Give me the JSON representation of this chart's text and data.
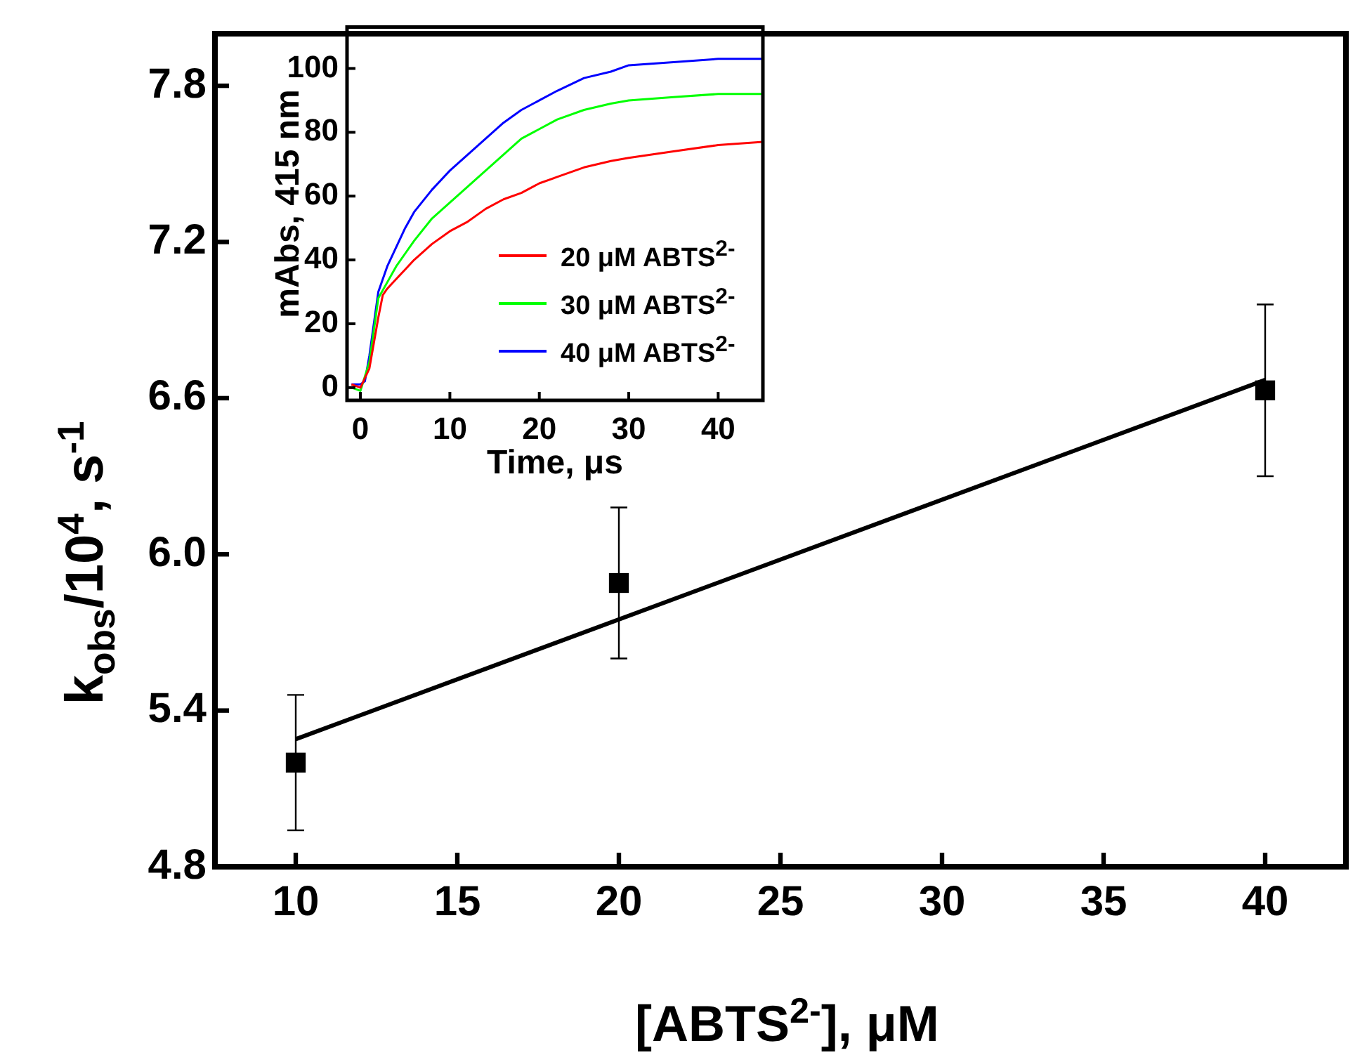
{
  "chart_data": [
    {
      "type": "scatter",
      "xlabel": "[ABTS$^{2-}$], μM",
      "ylabel": "k$_{obs}$/10$^{4}$, s$^{-1}$",
      "xlim": [
        7.5,
        42.5
      ],
      "xticks": [
        10,
        15,
        20,
        25,
        30,
        35,
        40
      ],
      "ylim": [
        4.8,
        8.0
      ],
      "yticks": [
        4.8,
        5.4,
        {
          "value": 6,
          "label": "6.0"
        },
        6.6,
        7.2,
        7.8
      ],
      "legend": false,
      "grid": false,
      "series": [
        {
          "type": "scatter",
          "marker": "square",
          "color": "#000000",
          "x": [
            10,
            20,
            40
          ],
          "values": [
            5.2,
            5.89,
            6.63
          ],
          "errors": [
            0.26,
            0.29,
            0.33
          ]
        },
        {
          "type": "line",
          "marker": "none",
          "color": "#000000",
          "x": [
            10,
            40
          ],
          "values": [
            5.29,
            6.67
          ]
        }
      ]
    },
    {
      "type": "line",
      "xlabel": "Time, μs",
      "ylabel": "mAbs, 415 nm",
      "xlim": [
        -1.5,
        45
      ],
      "xticks": [
        0,
        10,
        20,
        30,
        40
      ],
      "ylim": [
        -4,
        113
      ],
      "yticks": [
        0,
        20,
        40,
        60,
        80,
        100
      ],
      "legend": "bottom right",
      "grid": false,
      "marker": "none",
      "series": [
        {
          "name": "20 μM ABTS$^{2-}$",
          "color": "#ff0000",
          "x": [
            -1,
            0,
            1,
            2,
            2.5,
            3,
            4,
            5,
            6,
            8,
            10,
            12,
            14,
            16,
            18,
            20,
            22,
            25,
            28,
            30,
            35,
            40,
            45
          ],
          "values": [
            1,
            0,
            6,
            22,
            29,
            31,
            34,
            37,
            40,
            45,
            49,
            52,
            56,
            59,
            61,
            64,
            66,
            69,
            71,
            72,
            74,
            76,
            77
          ]
        },
        {
          "name": "30 μM ABTS$^{2-}$",
          "color": "#00ff00",
          "x": [
            -1,
            0,
            1,
            2,
            3,
            4,
            5,
            6,
            8,
            10,
            12,
            14,
            16,
            18,
            20,
            22,
            25,
            28,
            30,
            35,
            40,
            45
          ],
          "values": [
            0,
            -1,
            8,
            28,
            33,
            38,
            42,
            46,
            53,
            58,
            63,
            68,
            73,
            78,
            81,
            84,
            87,
            89,
            90,
            91,
            92,
            92
          ]
        },
        {
          "name": "40 μM ABTS$^{2-}$",
          "color": "#0000ff",
          "x": [
            -1,
            0,
            0.5,
            1,
            2,
            3,
            4,
            5,
            6,
            8,
            10,
            12,
            14,
            16,
            18,
            20,
            22,
            25,
            28,
            30,
            35,
            40,
            45
          ],
          "values": [
            1,
            1,
            2,
            10,
            30,
            38,
            44,
            50,
            55,
            62,
            68,
            73,
            78,
            83,
            87,
            90,
            93,
            97,
            99,
            101,
            102,
            103,
            103
          ]
        }
      ]
    }
  ]
}
